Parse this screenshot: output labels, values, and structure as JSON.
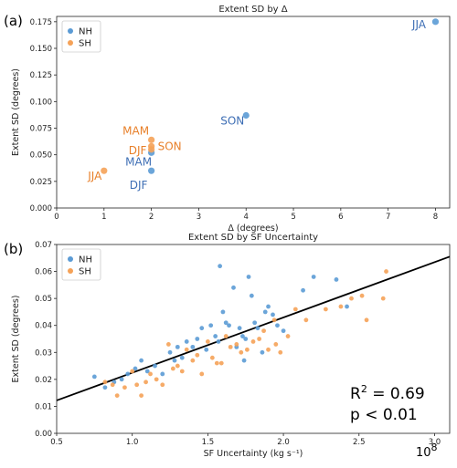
{
  "colors": {
    "NH": "#5b9bd5",
    "SH": "#f5a258",
    "NH_label": "#3f6fb5",
    "SH_label": "#e8802a",
    "fit": "#000000"
  },
  "chart_data": [
    {
      "type": "scatter",
      "panel_label": "(a)",
      "title": "Extent SD by Δ",
      "xlabel": "Δ (degrees)",
      "ylabel": "Extent SD (degrees)",
      "xlim": [
        0,
        8.3
      ],
      "ylim": [
        0,
        0.18
      ],
      "xticks": [
        "0",
        "1",
        "2",
        "3",
        "4",
        "5",
        "6",
        "7",
        "8"
      ],
      "yticks": [
        "0.000",
        "0.025",
        "0.050",
        "0.075",
        "0.100",
        "0.125",
        "0.150",
        "0.175"
      ],
      "legend": {
        "position": "top-left",
        "entries": [
          "NH",
          "SH"
        ]
      },
      "series": [
        {
          "name": "NH",
          "points": [
            {
              "x": 8,
              "y": 0.175,
              "label": "JJA"
            },
            {
              "x": 4,
              "y": 0.087,
              "label": "SON"
            },
            {
              "x": 2,
              "y": 0.052,
              "label": "MAM"
            },
            {
              "x": 2,
              "y": 0.035,
              "label": "DJF"
            }
          ]
        },
        {
          "name": "SH",
          "points": [
            {
              "x": 2,
              "y": 0.064,
              "label": "MAM"
            },
            {
              "x": 2,
              "y": 0.058,
              "label": "SON"
            },
            {
              "x": 2,
              "y": 0.055,
              "label": "DJF"
            },
            {
              "x": 1,
              "y": 0.035,
              "label": "JJA"
            }
          ]
        }
      ]
    },
    {
      "type": "scatter",
      "panel_label": "(b)",
      "title": "Extent SD by SF Uncertainty",
      "xlabel": "SF Uncertainty (kg s⁻¹)",
      "ylabel": "Extent SD (degrees)",
      "x_multiplier": "10",
      "x_multiplier_exp": "8",
      "xlim": [
        0.5,
        3.1
      ],
      "ylim": [
        0,
        0.07
      ],
      "xticks": [
        "0.5",
        "1.0",
        "1.5",
        "2.0",
        "2.5",
        "3.0"
      ],
      "yticks": [
        "0.00",
        "0.01",
        "0.02",
        "0.03",
        "0.04",
        "0.05",
        "0.06",
        "0.07"
      ],
      "legend": {
        "position": "top-left",
        "entries": [
          "NH",
          "SH"
        ]
      },
      "fit_line": {
        "x": [
          0.5,
          3.1
        ],
        "y": [
          0.0122,
          0.0655
        ]
      },
      "stats": {
        "r2_prefix": "R",
        "r2_sup": "2",
        "r2_suffix": " = 0.69",
        "p": "p < 0.01"
      },
      "series": [
        {
          "name": "NH",
          "points": [
            [
              0.75,
              0.021
            ],
            [
              0.82,
              0.017
            ],
            [
              0.88,
              0.019
            ],
            [
              0.93,
              0.02
            ],
            [
              0.97,
              0.022
            ],
            [
              1.02,
              0.024
            ],
            [
              1.06,
              0.027
            ],
            [
              1.1,
              0.023
            ],
            [
              1.15,
              0.025
            ],
            [
              1.2,
              0.022
            ],
            [
              1.25,
              0.03
            ],
            [
              1.28,
              0.027
            ],
            [
              1.3,
              0.032
            ],
            [
              1.33,
              0.028
            ],
            [
              1.36,
              0.034
            ],
            [
              1.4,
              0.032
            ],
            [
              1.43,
              0.035
            ],
            [
              1.46,
              0.039
            ],
            [
              1.49,
              0.031
            ],
            [
              1.52,
              0.04
            ],
            [
              1.55,
              0.036
            ],
            [
              1.57,
              0.034
            ],
            [
              1.58,
              0.062
            ],
            [
              1.6,
              0.045
            ],
            [
              1.62,
              0.041
            ],
            [
              1.64,
              0.04
            ],
            [
              1.67,
              0.054
            ],
            [
              1.69,
              0.032
            ],
            [
              1.71,
              0.039
            ],
            [
              1.73,
              0.036
            ],
            [
              1.75,
              0.035
            ],
            [
              1.77,
              0.058
            ],
            [
              1.79,
              0.051
            ],
            [
              1.81,
              0.041
            ],
            [
              1.83,
              0.039
            ],
            [
              1.86,
              0.03
            ],
            [
              1.88,
              0.045
            ],
            [
              1.9,
              0.047
            ],
            [
              1.93,
              0.044
            ],
            [
              1.96,
              0.04
            ],
            [
              2.0,
              0.038
            ],
            [
              2.13,
              0.053
            ],
            [
              2.2,
              0.058
            ],
            [
              2.35,
              0.057
            ],
            [
              2.42,
              0.047
            ],
            [
              1.74,
              0.027
            ]
          ]
        },
        {
          "name": "SH",
          "points": [
            [
              0.82,
              0.019
            ],
            [
              0.87,
              0.018
            ],
            [
              0.9,
              0.014
            ],
            [
              0.95,
              0.017
            ],
            [
              1.0,
              0.023
            ],
            [
              1.03,
              0.018
            ],
            [
              1.06,
              0.014
            ],
            [
              1.09,
              0.019
            ],
            [
              1.12,
              0.022
            ],
            [
              1.16,
              0.02
            ],
            [
              1.2,
              0.018
            ],
            [
              1.24,
              0.033
            ],
            [
              1.27,
              0.024
            ],
            [
              1.3,
              0.025
            ],
            [
              1.33,
              0.023
            ],
            [
              1.36,
              0.031
            ],
            [
              1.4,
              0.027
            ],
            [
              1.43,
              0.029
            ],
            [
              1.46,
              0.022
            ],
            [
              1.5,
              0.034
            ],
            [
              1.53,
              0.028
            ],
            [
              1.56,
              0.026
            ],
            [
              1.59,
              0.026
            ],
            [
              1.62,
              0.036
            ],
            [
              1.65,
              0.032
            ],
            [
              1.69,
              0.033
            ],
            [
              1.72,
              0.03
            ],
            [
              1.76,
              0.031
            ],
            [
              1.8,
              0.034
            ],
            [
              1.84,
              0.035
            ],
            [
              1.87,
              0.038
            ],
            [
              1.9,
              0.031
            ],
            [
              1.94,
              0.042
            ],
            [
              1.98,
              0.03
            ],
            [
              2.03,
              0.036
            ],
            [
              2.08,
              0.046
            ],
            [
              2.15,
              0.042
            ],
            [
              2.28,
              0.046
            ],
            [
              2.38,
              0.047
            ],
            [
              2.45,
              0.05
            ],
            [
              2.52,
              0.051
            ],
            [
              2.55,
              0.042
            ],
            [
              2.66,
              0.05
            ],
            [
              2.68,
              0.06
            ],
            [
              1.95,
              0.033
            ]
          ]
        }
      ]
    }
  ]
}
